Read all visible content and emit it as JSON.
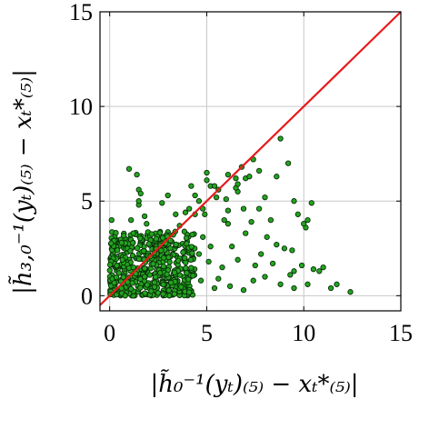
{
  "chart_data": {
    "type": "scatter",
    "xlabel": "|h̃₀⁻¹(yₜ)₍₅₎ − xₜ*₍₅₎|",
    "ylabel": "|h̃₃,₀⁻¹(yₜ)₍₅₎ − xₜ*₍₅₎|",
    "xlim": [
      -0.5,
      15
    ],
    "ylim": [
      -0.8,
      15
    ],
    "x_ticks": [
      0,
      5,
      10,
      15
    ],
    "y_ticks": [
      0,
      5,
      10,
      15
    ],
    "grid": true,
    "reference_line": {
      "name": "y = x",
      "color": "#e8191c",
      "from": [
        -0.5,
        -0.5
      ],
      "to": [
        15,
        15
      ]
    },
    "marker_color": "#22a51f",
    "marker_edge": "#0b2e0a",
    "series": [
      {
        "points": [
          [
            1.0,
            6.7
          ],
          [
            1.4,
            6.4
          ],
          [
            1.5,
            5.6
          ],
          [
            1.6,
            5.4
          ],
          [
            1.5,
            4.8
          ],
          [
            1.8,
            4.2
          ],
          [
            1.1,
            4.0
          ],
          [
            0.1,
            4.0
          ],
          [
            2.7,
            4.9
          ],
          [
            3.0,
            5.3
          ],
          [
            3.4,
            4.3
          ],
          [
            3.9,
            4.4
          ],
          [
            3.6,
            3.7
          ],
          [
            1.5,
            5.0
          ],
          [
            1.9,
            3.8
          ],
          [
            4.2,
            5.8
          ],
          [
            4.4,
            5.3
          ],
          [
            4.6,
            5.0
          ],
          [
            4.1,
            4.6
          ],
          [
            4.8,
            4.6
          ],
          [
            4.4,
            4.3
          ],
          [
            4.9,
            4.3
          ],
          [
            5.5,
            5.2
          ],
          [
            5.2,
            5.8
          ],
          [
            5.6,
            5.6
          ],
          [
            5.9,
            4.0
          ],
          [
            6.1,
            4.5
          ],
          [
            6.6,
            5.5
          ],
          [
            5.4,
            5.8
          ],
          [
            5.0,
            6.1
          ],
          [
            5.0,
            6.5
          ],
          [
            6.0,
            5.1
          ],
          [
            6.5,
            5.7
          ],
          [
            6.9,
            4.6
          ],
          [
            6.8,
            6.8
          ],
          [
            7.0,
            6.2
          ],
          [
            6.5,
            6.2
          ],
          [
            6.1,
            6.4
          ],
          [
            6.6,
            5.9
          ],
          [
            7.4,
            7.2
          ],
          [
            7.7,
            6.6
          ],
          [
            8.0,
            5.2
          ],
          [
            8.3,
            4.0
          ],
          [
            8.8,
            8.3
          ],
          [
            9.2,
            7.0
          ],
          [
            7.2,
            6.3
          ],
          [
            8.6,
            6.3
          ],
          [
            9.5,
            5.0
          ],
          [
            9.7,
            4.3
          ],
          [
            10.2,
            4.0
          ],
          [
            10.4,
            4.9
          ],
          [
            10.1,
            3.6
          ],
          [
            10.0,
            3.8
          ],
          [
            7.7,
            4.6
          ],
          [
            7.0,
            3.3
          ],
          [
            6.1,
            3.8
          ],
          [
            7.3,
            3.9
          ],
          [
            8.1,
            3.1
          ],
          [
            8.6,
            2.7
          ],
          [
            8.4,
            1.7
          ],
          [
            9.0,
            2.5
          ],
          [
            9.4,
            2.4
          ],
          [
            9.5,
            1.3
          ],
          [
            9.9,
            1.6
          ],
          [
            9.3,
            1.1
          ],
          [
            10.5,
            1.4
          ],
          [
            10.8,
            1.3
          ],
          [
            11.0,
            1.5
          ],
          [
            11.7,
            0.6
          ],
          [
            11.4,
            0.4
          ],
          [
            12.4,
            0.2
          ],
          [
            10.2,
            0.6
          ],
          [
            9.5,
            0.4
          ],
          [
            8.8,
            0.6
          ],
          [
            8.0,
            1.0
          ],
          [
            7.5,
            1.6
          ],
          [
            7.8,
            2.2
          ],
          [
            6.3,
            2.6
          ],
          [
            6.6,
            1.9
          ],
          [
            5.8,
            1.5
          ],
          [
            5.2,
            2.6
          ],
          [
            4.8,
            3.1
          ],
          [
            4.6,
            2.2
          ],
          [
            5.1,
            1.8
          ],
          [
            5.6,
            0.9
          ],
          [
            6.2,
            0.5
          ],
          [
            6.9,
            0.3
          ],
          [
            7.4,
            0.8
          ],
          [
            4.0,
            0.2
          ],
          [
            4.3,
            1.2
          ],
          [
            3.8,
            2.0
          ],
          [
            4.7,
            0.8
          ],
          [
            5.4,
            0.4
          ]
        ]
      }
    ],
    "cluster": {
      "description": "dense cloud near origin",
      "x_range": [
        0.0,
        4.4
      ],
      "y_range": [
        0.0,
        3.4
      ]
    }
  }
}
